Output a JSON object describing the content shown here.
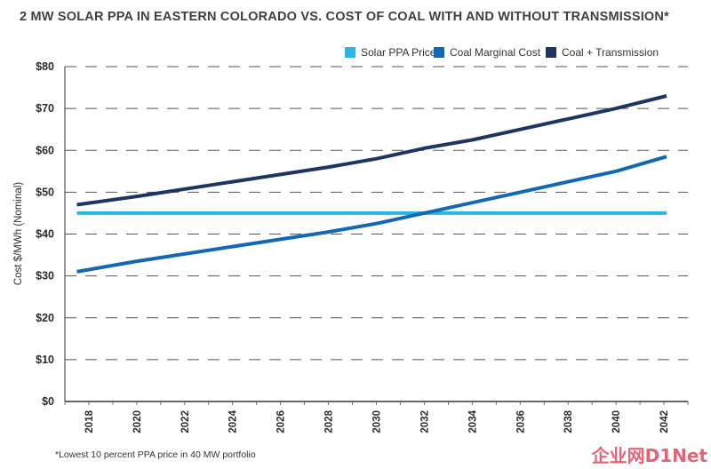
{
  "title": "2 MW SOLAR PPA IN EASTERN COLORADO VS. COST OF COAL WITH AND WITHOUT TRANSMISSION*",
  "footnote": "*Lowest 10 percent PPA price in 40 MW portfolio",
  "watermark": "企业网D1Net",
  "chart_data": {
    "type": "line",
    "title": "2 MW SOLAR PPA IN EASTERN COLORADO VS. COST OF COAL WITH AND WITHOUT TRANSMISSION*",
    "xlabel": "",
    "ylabel": "Cost $/MWh (Nominal)",
    "xlim": [
      2017,
      2043
    ],
    "ylim": [
      0,
      80
    ],
    "x_ticks": [
      2018,
      2020,
      2022,
      2024,
      2026,
      2028,
      2030,
      2032,
      2034,
      2036,
      2038,
      2040,
      2042
    ],
    "x_tick_labels": [
      "2018",
      "2020",
      "2022",
      "2024",
      "2026",
      "2028",
      "2030",
      "2032",
      "2034",
      "2036",
      "2038",
      "2040",
      "2042"
    ],
    "y_ticks": [
      0,
      10,
      20,
      30,
      40,
      50,
      60,
      70,
      80
    ],
    "y_tick_labels": [
      "$0",
      "$10",
      "$20",
      "$30",
      "$40",
      "$50",
      "$60",
      "$70",
      "$80"
    ],
    "grid": "horizontal dashed",
    "legend_position": "top-right",
    "series": [
      {
        "name": "Solar PPA Price",
        "color": "#29b6e3",
        "x": [
          2017.5,
          2043
        ],
        "values": [
          45,
          45
        ]
      },
      {
        "name": "Coal Marginal Cost",
        "color": "#1468b3",
        "x": [
          2017.5,
          2020,
          2024,
          2028,
          2030,
          2032,
          2034,
          2036,
          2038,
          2040,
          2043
        ],
        "values": [
          31,
          33.5,
          37,
          40.5,
          42.5,
          45,
          47.5,
          50,
          52.5,
          55,
          58.5
        ]
      },
      {
        "name": "Coal + Transmission",
        "color": "#1e3562",
        "x": [
          2017.5,
          2020,
          2024,
          2028,
          2030,
          2032,
          2034,
          2036,
          2038,
          2040,
          2043
        ],
        "values": [
          47,
          49,
          52.5,
          56,
          58,
          60.5,
          62.5,
          65,
          67.5,
          70,
          73
        ]
      }
    ]
  }
}
